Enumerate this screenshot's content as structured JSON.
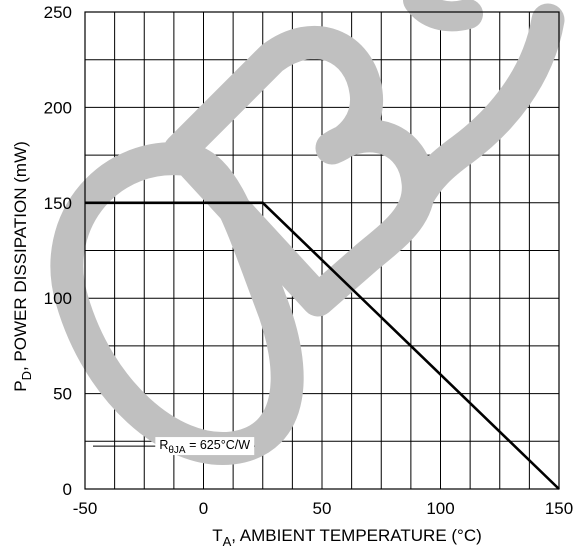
{
  "chart_data": {
    "type": "line",
    "xlabel_main": "T",
    "xlabel_sub": "A",
    "xlabel_rest": ", AMBIENT TEMPERATURE (°C)",
    "ylabel_main": "P",
    "ylabel_sub": "D",
    "ylabel_rest": ", POWER DISSIPATION (mW)",
    "x_ticks": [
      "-50",
      "0",
      "50",
      "100",
      "150"
    ],
    "y_ticks": [
      "0",
      "50",
      "100",
      "150",
      "200",
      "250"
    ],
    "xlim": [
      -50,
      150
    ],
    "ylim": [
      0,
      250
    ],
    "x_grid_step": 12.5,
    "y_grid_step": 25,
    "grid": true,
    "series": [
      {
        "x": [
          -50,
          25,
          150
        ],
        "y": [
          150,
          150,
          0
        ],
        "color": "#000000"
      }
    ],
    "annotation": {
      "r_main": "R",
      "r_sub": "θJA",
      "r_rest": " = 625°C/W",
      "x": 0.5,
      "y": 22.5,
      "span": [
        -50,
        25
      ]
    },
    "watermark": {
      "text": "OBS",
      "color": "#c0c0c0"
    }
  }
}
